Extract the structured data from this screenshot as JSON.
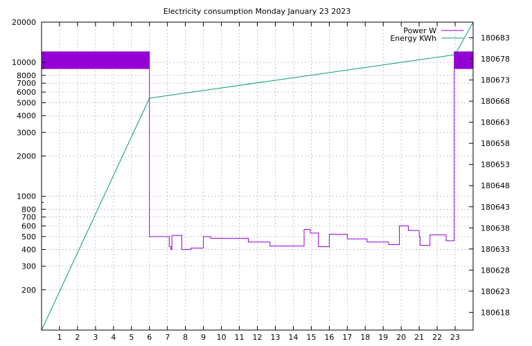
{
  "chart_data": {
    "type": "line",
    "title": "Electricity consumption Monday January 23 2023",
    "xlabel": "",
    "ylabel": "",
    "y2label": "",
    "grid": true,
    "legend_position": "top-right",
    "x": {
      "range": [
        0,
        24
      ],
      "ticks": [
        1,
        2,
        3,
        4,
        5,
        6,
        7,
        8,
        9,
        10,
        11,
        12,
        13,
        14,
        15,
        16,
        17,
        18,
        19,
        20,
        21,
        22,
        23
      ]
    },
    "y_left": {
      "scale": "log",
      "range": [
        100,
        20000
      ],
      "ticks": [
        200,
        300,
        400,
        500,
        600,
        700,
        800,
        1000,
        2000,
        3000,
        4000,
        5000,
        6000,
        7000,
        8000,
        10000,
        20000
      ]
    },
    "y_right": {
      "scale": "linear",
      "range": [
        180613.8,
        180686.7
      ],
      "ticks": [
        180618,
        180623,
        180628,
        180633,
        180638,
        180643,
        180648,
        180653,
        180658,
        180663,
        180668,
        180673,
        180678,
        180683
      ]
    },
    "series": [
      {
        "name": "Power W",
        "axis": "left",
        "color": "#9400d3",
        "points": [
          [
            0,
            12000
          ],
          [
            6,
            12000
          ],
          [
            6,
            9000
          ],
          [
            0,
            9000
          ],
          [
            0,
            12000
          ],
          [
            6,
            12000
          ],
          [
            6,
            700
          ],
          [
            6,
            500
          ],
          [
            7.1,
            500
          ],
          [
            7.1,
            420
          ],
          [
            7.2,
            420
          ],
          [
            7.2,
            400
          ],
          [
            7.25,
            400
          ],
          [
            7.25,
            510
          ],
          [
            7.8,
            510
          ],
          [
            7.8,
            400
          ],
          [
            8.3,
            400
          ],
          [
            8.3,
            410
          ],
          [
            9,
            410
          ],
          [
            9,
            500
          ],
          [
            9.4,
            500
          ],
          [
            9.4,
            485
          ],
          [
            11.5,
            485
          ],
          [
            11.5,
            455
          ],
          [
            12.7,
            455
          ],
          [
            12.7,
            425
          ],
          [
            14.6,
            425
          ],
          [
            14.6,
            565
          ],
          [
            14.95,
            565
          ],
          [
            14.95,
            530
          ],
          [
            15.4,
            530
          ],
          [
            15.4,
            420
          ],
          [
            16,
            420
          ],
          [
            16,
            520
          ],
          [
            17,
            520
          ],
          [
            17,
            480
          ],
          [
            18.1,
            480
          ],
          [
            18.1,
            455
          ],
          [
            19.3,
            455
          ],
          [
            19.3,
            435
          ],
          [
            19.9,
            435
          ],
          [
            19.9,
            600
          ],
          [
            20.4,
            600
          ],
          [
            20.4,
            555
          ],
          [
            21,
            555
          ],
          [
            21,
            500
          ],
          [
            21.05,
            500
          ],
          [
            21.05,
            430
          ],
          [
            21.6,
            430
          ],
          [
            21.6,
            515
          ],
          [
            22.5,
            515
          ],
          [
            22.5,
            465
          ],
          [
            22.95,
            465
          ],
          [
            22.95,
            12000
          ],
          [
            24,
            12000
          ],
          [
            24,
            9000
          ],
          [
            22.95,
            9000
          ],
          [
            22.95,
            12000
          ]
        ]
      },
      {
        "name": "Energy KWh",
        "axis": "right",
        "color": "#009e73",
        "points": [
          [
            0,
            180613.8
          ],
          [
            6,
            180668.7
          ],
          [
            23,
            180679.0
          ],
          [
            24,
            180686.7
          ]
        ]
      }
    ]
  }
}
